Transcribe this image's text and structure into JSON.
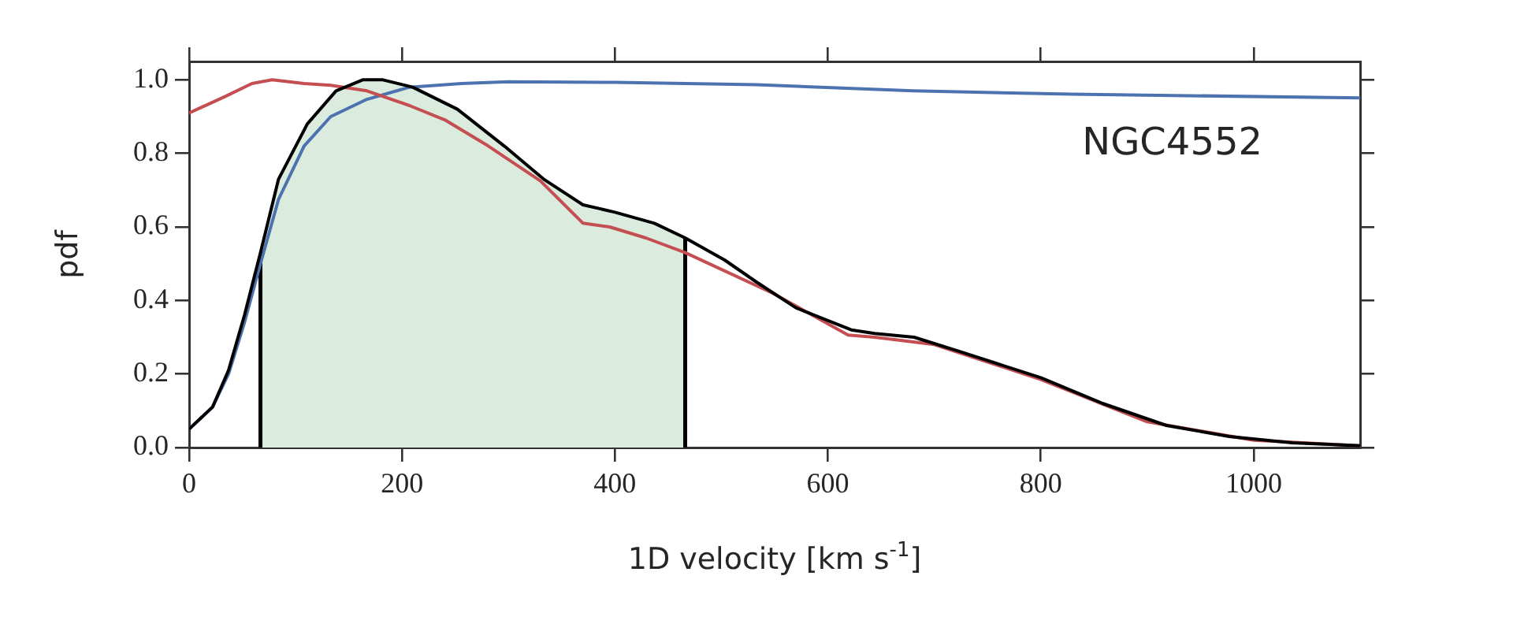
{
  "chart_data": {
    "type": "line",
    "xlabel": "1D velocity [km s$^{-1}$]",
    "ylabel": "pdf",
    "annotations": [
      "NGC4552"
    ],
    "xlim": [
      0,
      1100
    ],
    "xticks": [
      0,
      200,
      400,
      600,
      800,
      1000
    ],
    "ylim": [
      0,
      1.05
    ],
    "yticks": [
      {
        "value": 0,
        "label": "0.0"
      },
      0.2,
      0.4,
      0.6,
      0.8,
      {
        "value": 1,
        "label": "1.0"
      }
    ],
    "grid": false,
    "legend": false,
    "marker": "none",
    "line_style": "solid",
    "bands": [
      {
        "axis": "x",
        "from": 67,
        "to": 466,
        "color": "#dbecdf"
      }
    ],
    "ref_lines": [
      {
        "axis": "x",
        "value": 67,
        "color": "#000000"
      },
      {
        "axis": "x",
        "value": 466,
        "color": "#000000"
      }
    ],
    "series": [
      {
        "color": "#000000",
        "x": [
          0,
          22,
          37,
          52,
          67,
          84,
          111,
          138,
          163,
          182,
          210,
          252,
          296,
          333,
          370,
          400,
          437,
          466,
          503,
          533,
          570,
          622,
          644,
          681,
          725,
          800,
          858,
          918,
          977,
          1036,
          1100
        ],
        "values": [
          0.05,
          0.11,
          0.21,
          0.36,
          0.53,
          0.73,
          0.88,
          0.97,
          1.0,
          1.0,
          0.98,
          0.92,
          0.82,
          0.73,
          0.66,
          0.64,
          0.61,
          0.57,
          0.51,
          0.45,
          0.38,
          0.32,
          0.31,
          0.3,
          0.26,
          0.19,
          0.12,
          0.06,
          0.03,
          0.013,
          0.005
        ]
      },
      {
        "color": "#c44e52",
        "x": [
          0,
          34,
          59,
          78,
          108,
          133,
          167,
          207,
          241,
          281,
          330,
          370,
          395,
          429,
          466,
          548,
          619,
          644,
          700,
          800,
          900,
          1000,
          1100
        ],
        "values": [
          0.91,
          0.955,
          0.99,
          1.0,
          0.99,
          0.985,
          0.97,
          0.93,
          0.89,
          0.82,
          0.725,
          0.61,
          0.6,
          0.57,
          0.53,
          0.42,
          0.306,
          0.3,
          0.28,
          0.185,
          0.07,
          0.02,
          0.005
        ]
      },
      {
        "color": "#4c72b0",
        "x": [
          0,
          22,
          37,
          52,
          67,
          84,
          108,
          133,
          167,
          207,
          256,
          300,
          400,
          533,
          680,
          829,
          1100
        ],
        "values": [
          0.05,
          0.11,
          0.2,
          0.34,
          0.5,
          0.675,
          0.82,
          0.9,
          0.947,
          0.98,
          0.99,
          0.995,
          0.993,
          0.987,
          0.97,
          0.961,
          0.951
        ]
      }
    ]
  }
}
